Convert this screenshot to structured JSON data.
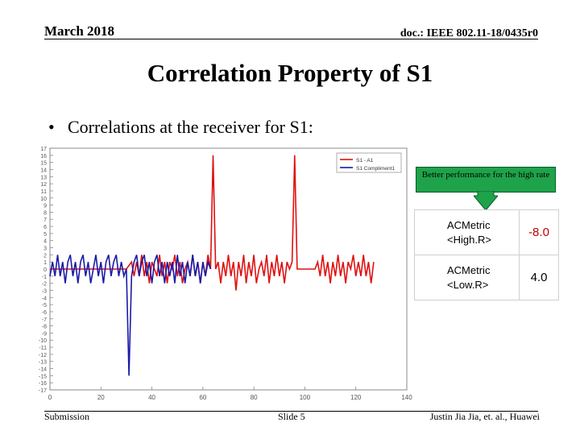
{
  "header": {
    "date": "March 2018",
    "doc_id": "doc.: IEEE 802.11-18/0435r0"
  },
  "title": "Correlation Property of S1",
  "bullet": {
    "symbol": "•",
    "text": "Correlations at the receiver for S1:"
  },
  "chart_data": {
    "type": "line",
    "xlim": [
      0,
      140
    ],
    "ylim": [
      -17,
      17
    ],
    "xticks": [
      0,
      20,
      40,
      60,
      80,
      100,
      120,
      140
    ],
    "yticks": [
      17,
      16,
      15,
      14,
      13,
      12,
      11,
      10,
      9,
      8,
      7,
      6,
      5,
      4,
      3,
      2,
      1,
      0,
      -1,
      -2,
      -3,
      -4,
      -5,
      -6,
      -7,
      -8,
      -9,
      -10,
      -11,
      -12,
      -13,
      -14,
      -15,
      -16,
      -17
    ],
    "legend": {
      "position": "top-right",
      "entries": [
        "S1 - A1",
        "S1 Compliment1"
      ]
    },
    "series": [
      {
        "name": "S1 - A1",
        "color": "#e01010",
        "points": [
          [
            0,
            0
          ],
          [
            30,
            0
          ],
          [
            32,
            1
          ],
          [
            33,
            -1
          ],
          [
            34,
            1
          ],
          [
            35,
            -1
          ],
          [
            36,
            2
          ],
          [
            37,
            -1
          ],
          [
            38,
            1
          ],
          [
            39,
            -2
          ],
          [
            40,
            1
          ],
          [
            41,
            0
          ],
          [
            42,
            -1
          ],
          [
            43,
            2
          ],
          [
            44,
            -1
          ],
          [
            45,
            1
          ],
          [
            46,
            -2
          ],
          [
            47,
            1
          ],
          [
            48,
            0
          ],
          [
            49,
            2
          ],
          [
            50,
            -1
          ],
          [
            51,
            1
          ],
          [
            52,
            -2
          ],
          [
            53,
            0
          ],
          [
            54,
            1
          ],
          [
            55,
            -1
          ],
          [
            56,
            2
          ],
          [
            57,
            -1
          ],
          [
            58,
            1
          ],
          [
            59,
            -2
          ],
          [
            60,
            1
          ],
          [
            61,
            -1
          ],
          [
            62,
            2
          ],
          [
            63,
            0
          ],
          [
            64,
            16
          ],
          [
            65,
            0
          ],
          [
            66,
            1
          ],
          [
            67,
            -2
          ],
          [
            68,
            1
          ],
          [
            69,
            -1
          ],
          [
            70,
            2
          ],
          [
            71,
            -1
          ],
          [
            72,
            1
          ],
          [
            73,
            -3
          ],
          [
            74,
            1
          ],
          [
            75,
            -1
          ],
          [
            76,
            2
          ],
          [
            77,
            -2
          ],
          [
            78,
            1
          ],
          [
            79,
            -1
          ],
          [
            80,
            2
          ],
          [
            81,
            -2
          ],
          [
            82,
            0
          ],
          [
            83,
            1
          ],
          [
            84,
            -1
          ],
          [
            85,
            2
          ],
          [
            86,
            -2
          ],
          [
            87,
            1
          ],
          [
            88,
            -1
          ],
          [
            89,
            2
          ],
          [
            90,
            -1
          ],
          [
            91,
            1
          ],
          [
            92,
            -2
          ],
          [
            93,
            1
          ],
          [
            94,
            0
          ],
          [
            95,
            1
          ],
          [
            96,
            16
          ],
          [
            97,
            0
          ],
          [
            98,
            0
          ],
          [
            99,
            0
          ],
          [
            100,
            0
          ],
          [
            101,
            0
          ],
          [
            102,
            0
          ],
          [
            103,
            0
          ],
          [
            104,
            0
          ],
          [
            105,
            1
          ],
          [
            106,
            -1
          ],
          [
            107,
            2
          ],
          [
            108,
            -1
          ],
          [
            109,
            1
          ],
          [
            110,
            -2
          ],
          [
            111,
            1
          ],
          [
            112,
            -1
          ],
          [
            113,
            2
          ],
          [
            114,
            -1
          ],
          [
            115,
            1
          ],
          [
            116,
            -2
          ],
          [
            117,
            1
          ],
          [
            118,
            0
          ],
          [
            119,
            2
          ],
          [
            120,
            -1
          ],
          [
            121,
            1
          ],
          [
            122,
            -1
          ],
          [
            123,
            2
          ],
          [
            124,
            -1
          ],
          [
            125,
            1
          ],
          [
            126,
            -2
          ],
          [
            127,
            1
          ]
        ]
      },
      {
        "name": "S1 Compliment1",
        "color": "#1a1aa8",
        "points": [
          [
            0,
            -1
          ],
          [
            1,
            1
          ],
          [
            2,
            -1
          ],
          [
            3,
            2
          ],
          [
            4,
            -1
          ],
          [
            5,
            1
          ],
          [
            6,
            -2
          ],
          [
            7,
            1
          ],
          [
            8,
            2
          ],
          [
            9,
            -1
          ],
          [
            10,
            1
          ],
          [
            11,
            -2
          ],
          [
            12,
            1
          ],
          [
            13,
            2
          ],
          [
            14,
            -1
          ],
          [
            15,
            1
          ],
          [
            16,
            -2
          ],
          [
            17,
            0
          ],
          [
            18,
            2
          ],
          [
            19,
            -1
          ],
          [
            20,
            1
          ],
          [
            21,
            -2
          ],
          [
            22,
            1
          ],
          [
            23,
            2
          ],
          [
            24,
            -1
          ],
          [
            25,
            1
          ],
          [
            26,
            2
          ],
          [
            27,
            -1
          ],
          [
            28,
            1
          ],
          [
            29,
            -1
          ],
          [
            30,
            0
          ],
          [
            31,
            -15
          ],
          [
            32,
            -1
          ],
          [
            33,
            1
          ],
          [
            34,
            2
          ],
          [
            35,
            -1
          ],
          [
            36,
            1
          ],
          [
            37,
            2
          ],
          [
            38,
            -1
          ],
          [
            39,
            1
          ],
          [
            40,
            -2
          ],
          [
            41,
            1
          ],
          [
            42,
            2
          ],
          [
            43,
            -1
          ],
          [
            44,
            1
          ],
          [
            45,
            -2
          ],
          [
            46,
            1
          ],
          [
            47,
            -1
          ],
          [
            48,
            1
          ],
          [
            49,
            -2
          ],
          [
            50,
            2
          ],
          [
            51,
            -1
          ],
          [
            52,
            1
          ],
          [
            53,
            -2
          ],
          [
            54,
            1
          ],
          [
            55,
            -1
          ],
          [
            56,
            2
          ],
          [
            57,
            -1
          ],
          [
            58,
            1
          ],
          [
            59,
            -2
          ],
          [
            60,
            1
          ],
          [
            61,
            -1
          ],
          [
            62,
            1
          ],
          [
            63,
            0
          ]
        ]
      }
    ]
  },
  "callout": {
    "text": "Better performance for the high rate"
  },
  "metrics": [
    {
      "label_line1": "ACMetric",
      "label_line2": "<High.R>",
      "value": "-8.0"
    },
    {
      "label_line1": "ACMetric",
      "label_line2": "<Low.R>",
      "value": "4.0"
    }
  ],
  "colors": {
    "callout_bg": "#1ea34a",
    "metric_value": "#c00000"
  },
  "footer": {
    "left": "Submission",
    "middle": "Slide 5",
    "right": "Justin Jia Jia, et. al., Huawei"
  }
}
